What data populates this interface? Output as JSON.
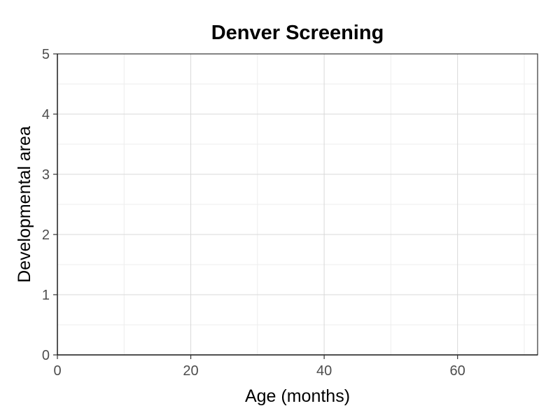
{
  "chart_data": {
    "type": "scatter",
    "title": "Denver Screening",
    "xlabel": "Age (months)",
    "ylabel": "Developmental area",
    "xlim": [
      0,
      72
    ],
    "ylim": [
      0,
      5
    ],
    "x_ticks": [
      0,
      20,
      40,
      60
    ],
    "y_ticks": [
      0,
      1,
      2,
      3,
      4,
      5
    ],
    "x_minor_ticks": [
      10,
      30,
      50,
      70
    ],
    "y_minor_ticks": [
      0.5,
      1.5,
      2.5,
      3.5,
      4.5
    ],
    "grid": true,
    "series": []
  }
}
